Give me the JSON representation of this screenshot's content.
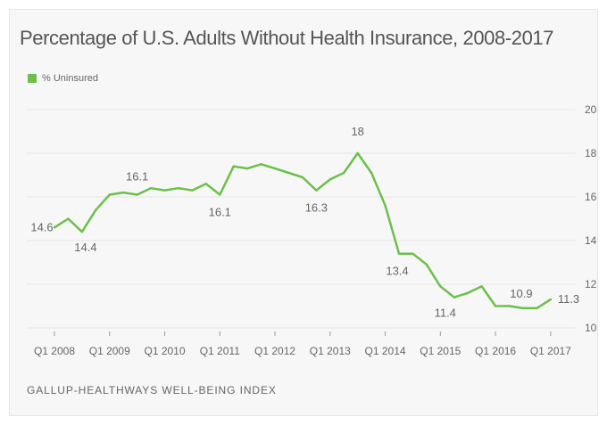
{
  "header": {
    "title": "Percentage of U.S. Adults Without Health Insurance, 2008-2017"
  },
  "footer": {
    "source": "GALLUP-HEALTHWAYS WELL-BEING INDEX"
  },
  "colors": {
    "series": "#6cc04a",
    "grid": "#e6e6e6",
    "axis_text": "#666666",
    "label_text": "#666666"
  },
  "chart_data": {
    "type": "line",
    "title": "Percentage of U.S. Adults Without Health Insurance, 2008-2017",
    "xlabel": "",
    "ylabel": "",
    "ylim": [
      10,
      20
    ],
    "yticks": [
      10,
      12,
      14,
      16,
      18,
      20
    ],
    "y_axis_position": "right",
    "grid": true,
    "legend_position": "top-left",
    "x_tick_labels": [
      "Q1 2008",
      "Q1 2009",
      "Q1 2010",
      "Q1 2011",
      "Q1 2012",
      "Q1 2013",
      "Q1 2014",
      "Q1 2015",
      "Q1 2016",
      "Q1 2017"
    ],
    "series": [
      {
        "name": "% Uninsured",
        "color": "#6cc04a",
        "values": [
          14.6,
          15.0,
          14.4,
          15.4,
          16.1,
          16.2,
          16.1,
          16.4,
          16.3,
          16.4,
          16.3,
          16.6,
          16.1,
          17.4,
          17.3,
          17.5,
          17.3,
          17.1,
          16.9,
          16.3,
          16.8,
          17.1,
          18.0,
          17.1,
          15.6,
          13.4,
          13.4,
          12.9,
          11.9,
          11.4,
          11.6,
          11.9,
          11.0,
          11.0,
          10.9,
          10.9,
          11.3
        ]
      }
    ],
    "annotations": [
      {
        "index": 0,
        "text": "14.6"
      },
      {
        "index": 2,
        "text": "14.4"
      },
      {
        "index": 6,
        "text": "16.1"
      },
      {
        "index": 12,
        "text": "16.1"
      },
      {
        "index": 19,
        "text": "16.3"
      },
      {
        "index": 22,
        "text": "18"
      },
      {
        "index": 25,
        "text": "13.4"
      },
      {
        "index": 29,
        "text": "11.4"
      },
      {
        "index": 34,
        "text": "10.9"
      },
      {
        "index": 36,
        "text": "11.3"
      }
    ]
  }
}
